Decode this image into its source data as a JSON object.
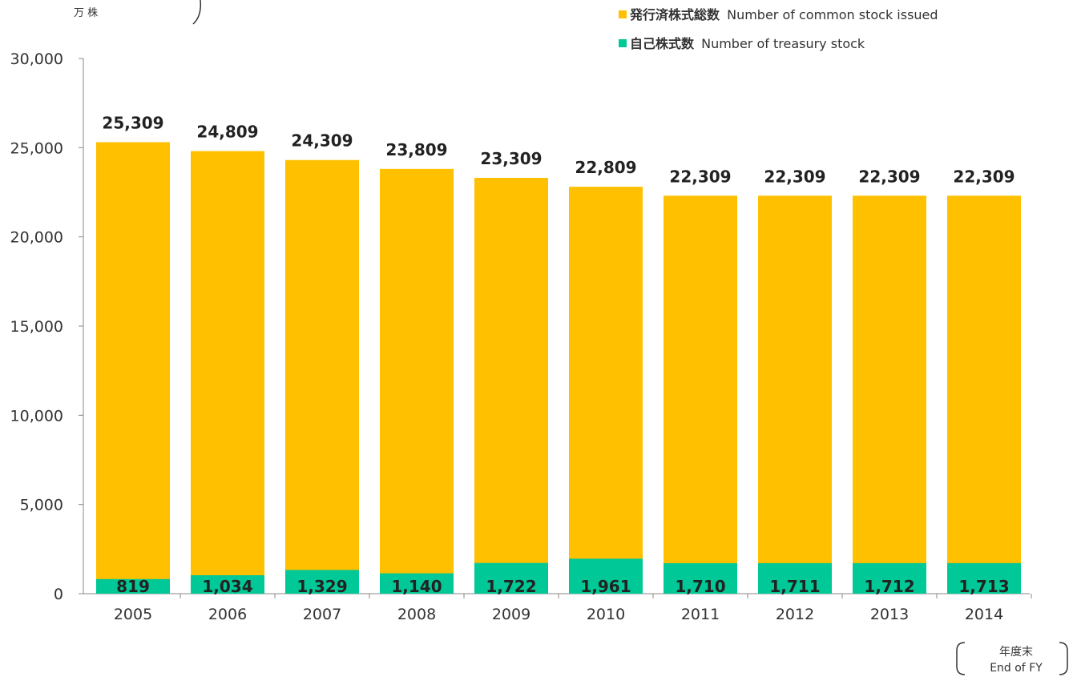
{
  "chart_data": {
    "type": "bar",
    "categories": [
      "2005",
      "2006",
      "2007",
      "2008",
      "2009",
      "2010",
      "2011",
      "2012",
      "2013",
      "2014"
    ],
    "series": [
      {
        "name": "発行済株式総数 Number of common stock issued",
        "name_ja": "発行済株式総数",
        "name_en": "Number of common stock issued",
        "values": [
          25309,
          24809,
          24309,
          23809,
          23309,
          22809,
          22309,
          22309,
          22309,
          22309
        ],
        "labels": [
          "25,309",
          "24,809",
          "24,309",
          "23,809",
          "23,309",
          "22,809",
          "22,309",
          "22,309",
          "22,309",
          "22,309"
        ],
        "color": "#FFC000"
      },
      {
        "name": "自己株式数 Number of treasury stock",
        "name_ja": "自己株式数",
        "name_en": "Number of treasury stock",
        "values": [
          819,
          1034,
          1329,
          1140,
          1722,
          1961,
          1710,
          1711,
          1712,
          1713
        ],
        "labels": [
          "819",
          "1,034",
          "1,329",
          "1,140",
          "1,722",
          "1,961",
          "1,710",
          "1,711",
          "1,712",
          "1,713"
        ],
        "color": "#00C896"
      }
    ],
    "ylim": [
      0,
      30000
    ],
    "yticks": [
      0,
      5000,
      10000,
      15000,
      20000,
      25000,
      30000
    ],
    "ytick_labels": [
      "0",
      "5,000",
      "10,000",
      "15,000",
      "20,000",
      "25,000",
      "30,000"
    ],
    "yunit": "万 株",
    "xlabel_ja": "年度末",
    "xlabel_en": "End of FY",
    "legend_position": "top-right",
    "grid": false
  }
}
